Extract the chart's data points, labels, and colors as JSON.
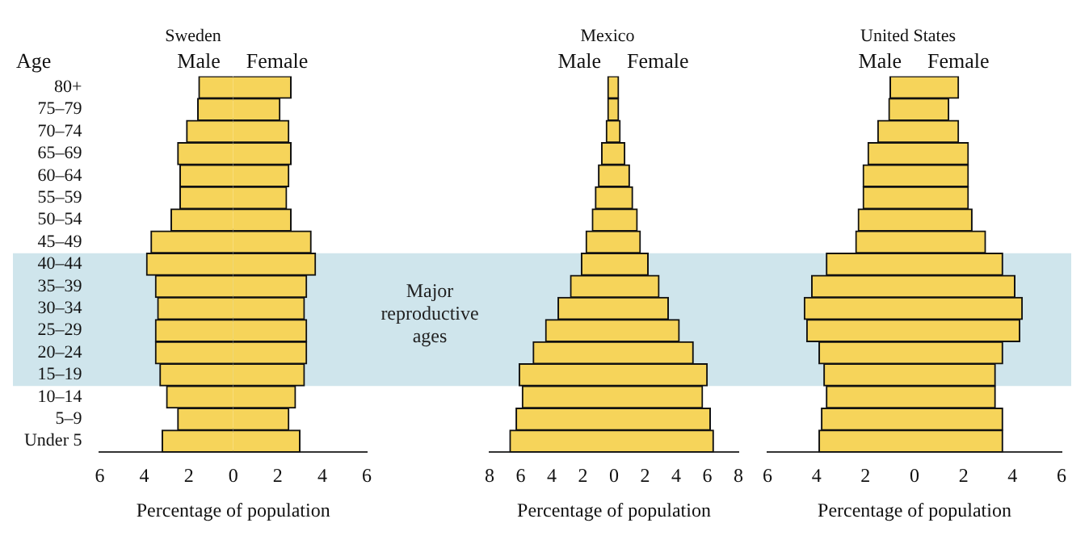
{
  "chart_data": [
    {
      "type": "bar",
      "orientation": "horizontal",
      "stacked": true,
      "title": "Sweden",
      "xlabel": "Percentage of population",
      "ylabel": "Age",
      "categories": [
        "80+",
        "75–79",
        "70–74",
        "65–69",
        "60–64",
        "55–59",
        "50–54",
        "45–49",
        "40–44",
        "35–39",
        "30–34",
        "25–29",
        "20–24",
        "15–19",
        "10–14",
        "5–9",
        "Under 5"
      ],
      "series": [
        {
          "name": "Male",
          "color": "#f6d45a",
          "values": [
            -1.55,
            -1.6,
            -2.1,
            -2.5,
            -2.4,
            -2.4,
            -2.8,
            -3.7,
            -3.9,
            -3.5,
            -3.4,
            -3.5,
            -3.5,
            -3.3,
            -3.0,
            -2.5,
            -3.2
          ]
        },
        {
          "name": "Female",
          "color": "#f6d45a",
          "values": [
            2.6,
            2.1,
            2.5,
            2.6,
            2.5,
            2.4,
            2.6,
            3.5,
            3.7,
            3.3,
            3.2,
            3.3,
            3.3,
            3.2,
            2.8,
            2.5,
            3.0
          ]
        }
      ],
      "xlim": [
        -6,
        6
      ],
      "xticks": [
        {
          "value": -6,
          "label": "6"
        },
        {
          "value": -4,
          "label": "4"
        },
        {
          "value": -2,
          "label": "2"
        },
        0,
        2,
        4,
        6
      ],
      "bands": [
        {
          "axis": "y",
          "from": "40–44",
          "to": "15–19",
          "color": "#cfe5ec"
        }
      ],
      "grid": false,
      "legend": false
    },
    {
      "type": "bar",
      "orientation": "horizontal",
      "stacked": true,
      "title": "Mexico",
      "xlabel": "Percentage of population",
      "categories": [
        "80+",
        "75–79",
        "70–74",
        "65–69",
        "60–64",
        "55–59",
        "50–54",
        "45–49",
        "40–44",
        "35–39",
        "30–34",
        "25–29",
        "20–24",
        "15–19",
        "10–14",
        "5–9",
        "Under 5"
      ],
      "series": [
        {
          "name": "Male",
          "color": "#f6d45a",
          "values": [
            -0.4,
            -0.4,
            -0.5,
            -0.8,
            -1.0,
            -1.2,
            -1.4,
            -1.8,
            -2.1,
            -2.8,
            -3.6,
            -4.4,
            -5.2,
            -6.1,
            -5.9,
            -6.3,
            -6.7
          ]
        },
        {
          "name": "Female",
          "color": "#f6d45a",
          "values": [
            0.3,
            0.3,
            0.4,
            0.7,
            1.0,
            1.2,
            1.5,
            1.7,
            2.2,
            2.9,
            3.5,
            4.2,
            5.1,
            6.0,
            5.7,
            6.2,
            6.4
          ]
        }
      ],
      "xlim": [
        -8,
        8
      ],
      "xticks": [
        {
          "value": -8,
          "label": "8"
        },
        {
          "value": -6,
          "label": "6"
        },
        {
          "value": -4,
          "label": "4"
        },
        {
          "value": -2,
          "label": "2"
        },
        0,
        2,
        4,
        6,
        8
      ],
      "bands": [
        {
          "axis": "y",
          "from": "40–44",
          "to": "15–19",
          "label": "Major reproductive ages",
          "color": "#cfe5ec"
        }
      ],
      "grid": false,
      "legend": false,
      "tick_labels": "x"
    },
    {
      "type": "bar",
      "orientation": "horizontal",
      "stacked": true,
      "title": "United States",
      "xlabel": "Percentage of population",
      "categories": [
        "80+",
        "75–79",
        "70–74",
        "65–69",
        "60–64",
        "55–59",
        "50–54",
        "45–49",
        "40–44",
        "35–39",
        "30–34",
        "25–29",
        "20–24",
        "15–19",
        "10–14",
        "5–9",
        "Under 5"
      ],
      "series": [
        {
          "name": "Male",
          "color": "#f6d45a",
          "values": [
            -1.0,
            -1.05,
            -1.5,
            -1.9,
            -2.1,
            -2.1,
            -2.3,
            -2.4,
            -3.6,
            -4.2,
            -4.5,
            -4.4,
            -3.9,
            -3.7,
            -3.6,
            -3.8,
            -3.9
          ]
        },
        {
          "name": "Female",
          "color": "#f6d45a",
          "values": [
            1.8,
            1.4,
            1.8,
            2.2,
            2.2,
            2.2,
            2.35,
            2.9,
            3.6,
            4.1,
            4.4,
            4.3,
            3.6,
            3.3,
            3.3,
            3.6,
            3.6
          ]
        }
      ],
      "xlim": [
        -6,
        6
      ],
      "xticks": [
        {
          "value": -6,
          "label": "6"
        },
        {
          "value": -4,
          "label": "4"
        },
        {
          "value": -2,
          "label": "2"
        },
        0,
        2,
        4,
        6
      ],
      "bands": [
        {
          "axis": "y",
          "from": "40–44",
          "to": "15–19",
          "color": "#cfe5ec"
        }
      ],
      "grid": false,
      "legend": false,
      "tick_labels": "x"
    }
  ]
}
